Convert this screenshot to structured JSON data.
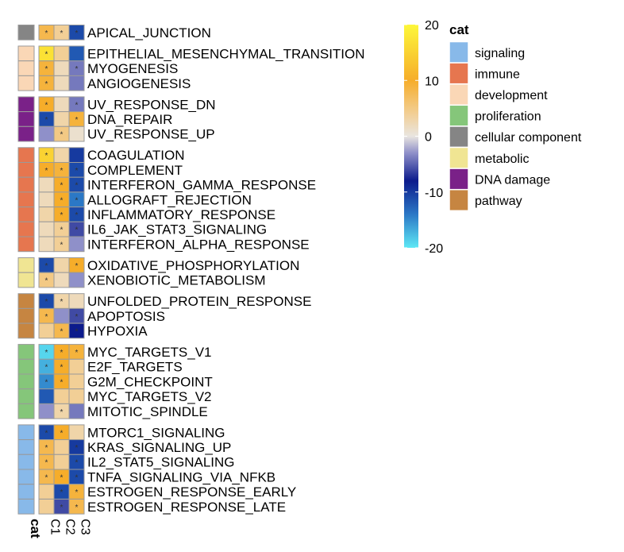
{
  "chart_data": {
    "type": "heatmap",
    "columns": [
      "C1",
      "C2",
      "C3"
    ],
    "category_axis_label": "cat",
    "color_scale": {
      "min": -20,
      "max": 20,
      "ticks": [
        20,
        10,
        0,
        -10,
        -20
      ],
      "stops": [
        {
          "value": -20,
          "color": "#5ee8f5"
        },
        {
          "value": -14,
          "color": "#2b78c6"
        },
        {
          "value": -8,
          "color": "#0c1b8c"
        },
        {
          "value": -3,
          "color": "#8f90c9"
        },
        {
          "value": 0,
          "color": "#e9e5e0"
        },
        {
          "value": 4,
          "color": "#f2cf96"
        },
        {
          "value": 10,
          "color": "#f6ad2a"
        },
        {
          "value": 20,
          "color": "#fdf73a"
        }
      ]
    },
    "legend": {
      "title": "cat",
      "placement": "right",
      "entries": [
        {
          "name": "signaling",
          "color": "#88b9e9"
        },
        {
          "name": "immune",
          "color": "#e6764f"
        },
        {
          "name": "development",
          "color": "#fad7b6"
        },
        {
          "name": "proliferation",
          "color": "#85c67a"
        },
        {
          "name": "cellular component",
          "color": "#858585"
        },
        {
          "name": "metabolic",
          "color": "#f0e593"
        },
        {
          "name": "DNA damage",
          "color": "#7a2188"
        },
        {
          "name": "pathway",
          "color": "#c68541"
        }
      ]
    },
    "groups": [
      {
        "category": "cellular component",
        "rows": [
          {
            "label": "APICAL_JUNCTION",
            "values": [
              8,
              4,
              -11
            ],
            "stars": [
              true,
              true,
              true
            ]
          }
        ]
      },
      {
        "category": "development",
        "rows": [
          {
            "label": "EPITHELIAL_MESENCHYMAL_TRANSITION",
            "values": [
              17,
              4,
              -12
            ],
            "stars": [
              true,
              false,
              false
            ]
          },
          {
            "label": "MYOGENESIS",
            "values": [
              9,
              2,
              -4
            ],
            "stars": [
              true,
              false,
              true
            ]
          },
          {
            "label": "ANGIOGENESIS",
            "values": [
              9,
              2,
              -4
            ],
            "stars": [
              true,
              false,
              false
            ]
          }
        ]
      },
      {
        "category": "DNA damage",
        "rows": [
          {
            "label": "UV_RESPONSE_DN",
            "values": [
              10,
              2,
              -4
            ],
            "stars": [
              true,
              false,
              true
            ]
          },
          {
            "label": "DNA_REPAIR",
            "values": [
              -11,
              3,
              9
            ],
            "stars": [
              true,
              false,
              true
            ]
          },
          {
            "label": "UV_RESPONSE_UP",
            "values": [
              -3,
              5,
              1
            ],
            "stars": [
              false,
              true,
              false
            ]
          }
        ]
      },
      {
        "category": "immune",
        "rows": [
          {
            "label": "COAGULATION",
            "values": [
              15,
              3,
              -10
            ],
            "stars": [
              true,
              false,
              false
            ]
          },
          {
            "label": "COMPLEMENT",
            "values": [
              10,
              9,
              -11
            ],
            "stars": [
              true,
              true,
              true
            ]
          },
          {
            "label": "INTERFERON_GAMMA_RESPONSE",
            "values": [
              2,
              10,
              -11
            ],
            "stars": [
              false,
              true,
              true
            ]
          },
          {
            "label": "ALLOGRAFT_REJECTION",
            "values": [
              2,
              10,
              -14
            ],
            "stars": [
              false,
              true,
              true
            ]
          },
          {
            "label": "INFLAMMATORY_RESPONSE",
            "values": [
              3,
              10,
              -11
            ],
            "stars": [
              false,
              true,
              true
            ]
          },
          {
            "label": "IL6_JAK_STAT3_SIGNALING",
            "values": [
              2,
              4,
              -6
            ],
            "stars": [
              false,
              true,
              true
            ]
          },
          {
            "label": "INTERFERON_ALPHA_RESPONSE",
            "values": [
              2,
              4,
              -3
            ],
            "stars": [
              false,
              true,
              false
            ]
          }
        ]
      },
      {
        "category": "metabolic",
        "rows": [
          {
            "label": "OXIDATIVE_PHOSPHORYLATION",
            "values": [
              -11,
              3,
              10
            ],
            "stars": [
              true,
              false,
              true
            ]
          },
          {
            "label": "XENOBIOTIC_METABOLISM",
            "values": [
              5,
              2,
              -3
            ],
            "stars": [
              true,
              false,
              false
            ]
          }
        ]
      },
      {
        "category": "pathway",
        "rows": [
          {
            "label": "UNFOLDED_PROTEIN_RESPONSE",
            "values": [
              -11,
              3,
              2
            ],
            "stars": [
              true,
              true,
              false
            ]
          },
          {
            "label": "APOPTOSIS",
            "values": [
              8,
              -3,
              -6
            ],
            "stars": [
              true,
              false,
              true
            ]
          },
          {
            "label": "HYPOXIA",
            "values": [
              4,
              8,
              -8
            ],
            "stars": [
              false,
              true,
              true
            ]
          }
        ]
      },
      {
        "category": "proliferation",
        "rows": [
          {
            "label": "MYC_TARGETS_V1",
            "values": [
              -19,
              10,
              9
            ],
            "stars": [
              true,
              true,
              true
            ]
          },
          {
            "label": "E2F_TARGETS",
            "values": [
              -17,
              10,
              4
            ],
            "stars": [
              true,
              true,
              false
            ]
          },
          {
            "label": "G2M_CHECKPOINT",
            "values": [
              -15,
              10,
              4
            ],
            "stars": [
              true,
              true,
              false
            ]
          },
          {
            "label": "MYC_TARGETS_V2",
            "values": [
              -12,
              4,
              4
            ],
            "stars": [
              false,
              false,
              false
            ]
          },
          {
            "label": "MITOTIC_SPINDLE",
            "values": [
              -3,
              3,
              -4
            ],
            "stars": [
              false,
              true,
              false
            ]
          }
        ]
      },
      {
        "category": "signaling",
        "rows": [
          {
            "label": "MTORC1_SIGNALING",
            "values": [
              -11,
              10,
              3
            ],
            "stars": [
              true,
              true,
              false
            ]
          },
          {
            "label": "KRAS_SIGNALING_UP",
            "values": [
              8,
              4,
              -10
            ],
            "stars": [
              true,
              false,
              true
            ]
          },
          {
            "label": "IL2_STAT5_SIGNALING",
            "values": [
              8,
              4,
              -11
            ],
            "stars": [
              true,
              false,
              true
            ]
          },
          {
            "label": "TNFA_SIGNALING_VIA_NFKB",
            "values": [
              8,
              10,
              -11
            ],
            "stars": [
              true,
              true,
              true
            ]
          },
          {
            "label": "ESTROGEN_RESPONSE_EARLY",
            "values": [
              4,
              -11,
              9
            ],
            "stars": [
              false,
              true,
              true
            ]
          },
          {
            "label": "ESTROGEN_RESPONSE_LATE",
            "values": [
              4,
              -6,
              8
            ],
            "stars": [
              false,
              true,
              true
            ]
          }
        ]
      }
    ]
  }
}
